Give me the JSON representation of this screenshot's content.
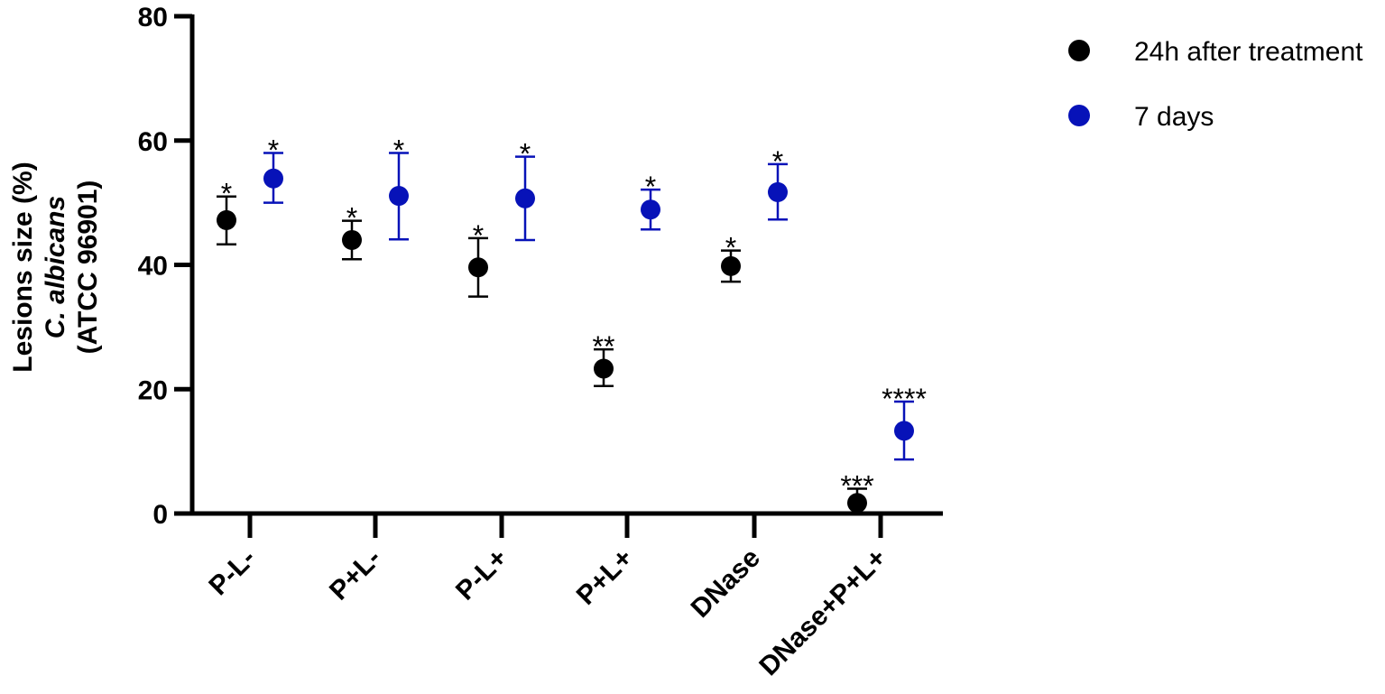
{
  "chart_data": {
    "type": "scatter",
    "title": "",
    "ylabel_lines": [
      "Lesions size (%)",
      "C. albicans",
      "(ATCC 96901)"
    ],
    "xlabel": "",
    "ylim": [
      0,
      80
    ],
    "yticks": [
      0,
      20,
      40,
      60,
      80
    ],
    "categories": [
      "P-L-",
      "P+L-",
      "P-L+",
      "P+L+",
      "DNase",
      "DNase+P+L+"
    ],
    "legend_position": "top-right",
    "grid": false,
    "series": [
      {
        "name": "24h after treatment",
        "color": "#000000",
        "values": [
          47.2,
          44.0,
          39.6,
          23.3,
          39.8,
          1.7
        ],
        "err_low": [
          43.3,
          40.9,
          34.9,
          20.5,
          37.3,
          0.0
        ],
        "err_high": [
          51.0,
          47.1,
          44.3,
          26.4,
          42.3,
          4.0
        ],
        "significance": [
          "*",
          "*",
          "*",
          "**",
          "*",
          "***"
        ]
      },
      {
        "name": "7 days",
        "color": "#0712b8",
        "values": [
          53.9,
          51.1,
          50.7,
          48.9,
          51.7,
          13.3
        ],
        "err_low": [
          50.0,
          44.1,
          44.0,
          45.7,
          47.3,
          8.7
        ],
        "err_high": [
          58.0,
          58.0,
          57.4,
          52.1,
          56.2,
          18.0
        ],
        "significance": [
          "*",
          "*",
          "*",
          "*",
          "*",
          "****"
        ]
      }
    ]
  }
}
